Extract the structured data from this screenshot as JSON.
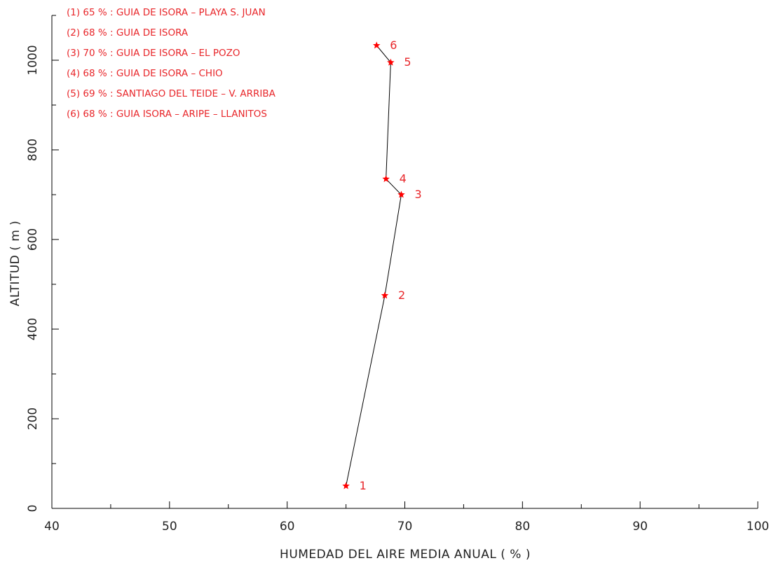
{
  "chart_data": {
    "type": "line",
    "title": "",
    "xlabel": "HUMEDAD DEL AIRE MEDIA ANUAL ( % )",
    "ylabel": "ALTITUD ( m )",
    "xlim": [
      40,
      100
    ],
    "ylim": [
      0,
      1100
    ],
    "x_ticks": [
      40,
      50,
      60,
      70,
      80,
      90,
      100
    ],
    "x_minor_step": 5,
    "y_ticks": [
      0,
      200,
      400,
      600,
      800,
      1000
    ],
    "y_minor_step": 100,
    "grid": false,
    "legend_position": "top-left",
    "colors": {
      "marker": "#ff0000",
      "line": "#000000",
      "legend_text": "#e8262a"
    },
    "points": [
      {
        "label": "1",
        "x": 65.0,
        "y": 50,
        "legend": "(1) 65 % : GUIA DE ISORA – PLAYA S. JUAN"
      },
      {
        "label": "2",
        "x": 68.3,
        "y": 475,
        "legend": "(2) 68 % : GUIA DE ISORA"
      },
      {
        "label": "3",
        "x": 69.7,
        "y": 700,
        "legend": "(3) 70 % : GUIA DE ISORA – EL POZO"
      },
      {
        "label": "4",
        "x": 68.4,
        "y": 735,
        "legend": "(4) 68 % : GUIA DE ISORA – CHIO"
      },
      {
        "label": "5",
        "x": 68.8,
        "y": 995,
        "legend": "(5) 69 % : SANTIAGO DEL TEIDE – V. ARRIBA"
      },
      {
        "label": "6",
        "x": 67.6,
        "y": 1033,
        "legend": "(6) 68 % : GUIA ISORA – ARIPE – LLANITOS"
      }
    ]
  }
}
